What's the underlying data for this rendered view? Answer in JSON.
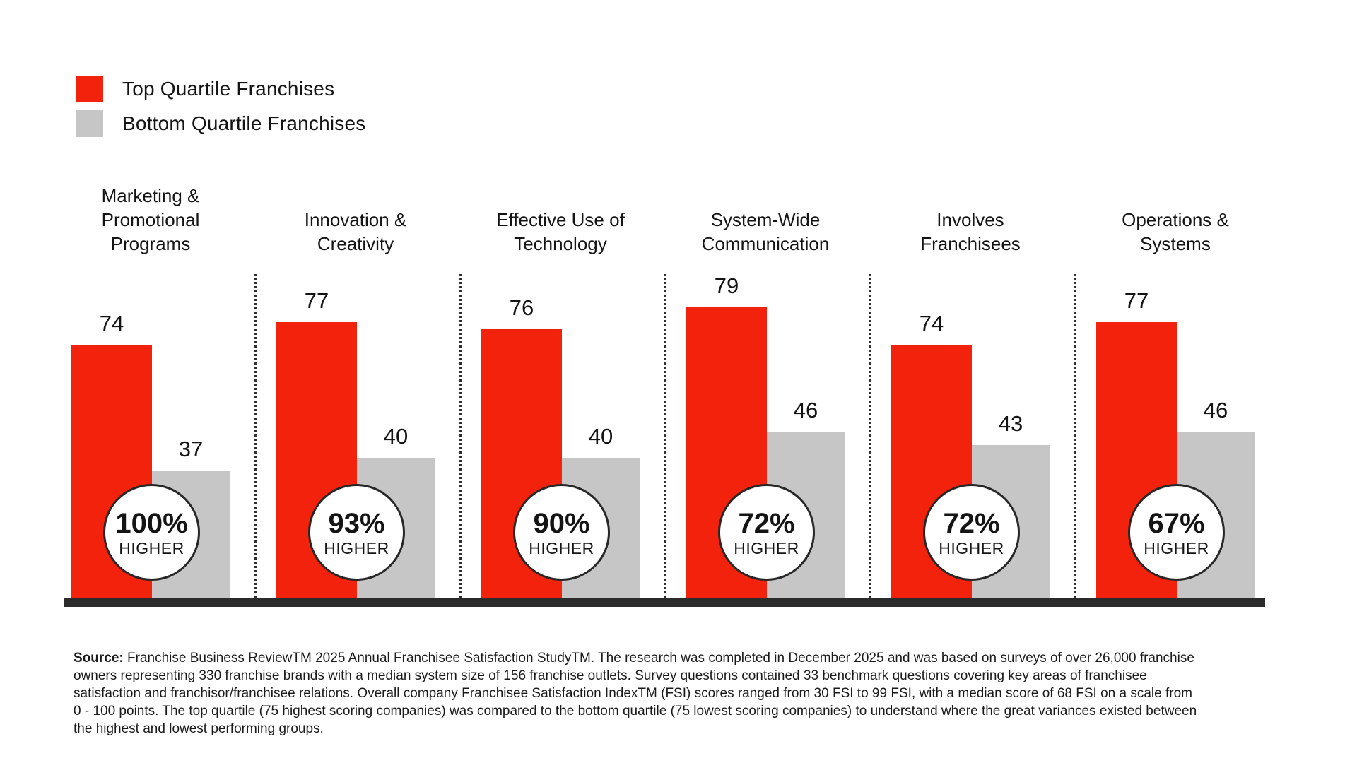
{
  "chart_data": {
    "type": "bar",
    "title": "",
    "categories": [
      "Marketing & Promotional Programs",
      "Innovation & Creativity",
      "Effective Use of Technology",
      "System-Wide Communication",
      "Involves Franchisees",
      "Operations & Systems"
    ],
    "category_display_lines": [
      [
        "Marketing &",
        "Promotional",
        "Programs"
      ],
      [
        "Innovation &",
        "Creativity"
      ],
      [
        "Effective Use of",
        "Technology"
      ],
      [
        "System-Wide",
        "Communication"
      ],
      [
        "Involves",
        "Franchisees"
      ],
      [
        "Operations &",
        "Systems"
      ]
    ],
    "series": [
      {
        "name": "Top Quartile Franchises",
        "color": "#F3220C",
        "values": [
          74,
          77,
          76,
          79,
          74,
          77
        ]
      },
      {
        "name": "Bottom Quartile Franchises",
        "color": "#C5C6C5",
        "values": [
          37,
          40,
          40,
          46,
          43,
          46
        ]
      }
    ],
    "badges": [
      {
        "value": "100%",
        "label": "HIGHER"
      },
      {
        "value": "93%",
        "label": "HIGHER"
      },
      {
        "value": "90%",
        "label": "HIGHER"
      },
      {
        "value": "72%",
        "label": "HIGHER"
      },
      {
        "value": "72%",
        "label": "HIGHER"
      },
      {
        "value": "67%",
        "label": "HIGHER"
      }
    ],
    "layout": {
      "grid": false,
      "legend_position": "top-left",
      "value_labels": "above-bars",
      "baseline_color": "#2B2B2B",
      "divider_style": "dotted-vertical",
      "value_scale": "0-100 point FSI scale (axis not drawn)"
    }
  },
  "source": {
    "label": "Source:",
    "text": "Franchise Business ReviewTM 2025 Annual Franchisee Satisfaction StudyTM. The research was completed in December 2025 and was based on surveys of over 26,000 franchise owners representing 330 franchise brands with a median system size of 156 franchise outlets. Survey questions contained 33 benchmark questions covering key areas of franchisee satisfaction and franchisor/franchisee relations. Overall company Franchisee Satisfaction IndexTM (FSI) scores ranged from 30 FSI to 99 FSI, with a median score of 68 FSI on a scale from 0 - 100 points. The top quartile (75 highest scoring companies) was compared to the bottom quartile (75 lowest scoring companies) to understand where the great variances existed between the highest and lowest performing groups."
  }
}
